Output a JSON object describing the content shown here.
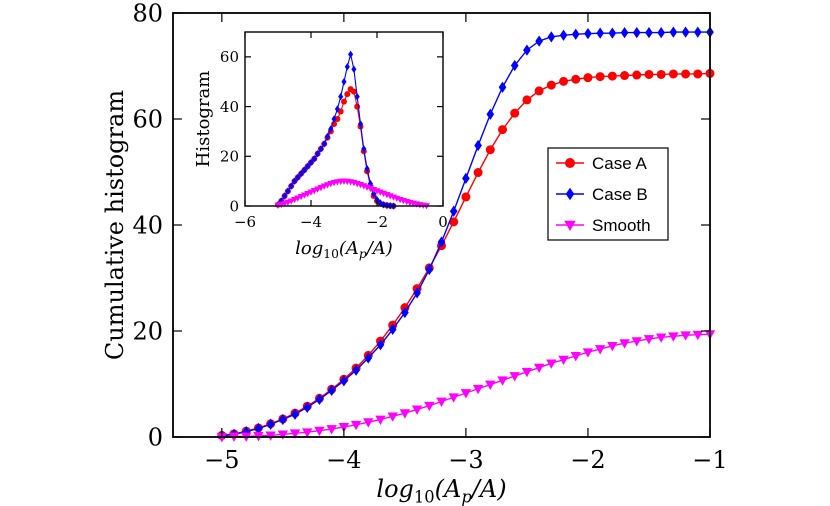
{
  "chart_data": [
    {
      "id": "main",
      "type": "line",
      "xlabel": "log10(Ap/A)",
      "ylabel": "Cumulative histogram",
      "xlim": [
        -5.4,
        -1
      ],
      "ylim": [
        0,
        80
      ],
      "xticks": [
        -5,
        -4,
        -3,
        -2,
        -1
      ],
      "xtick_labels": [
        "−5",
        "−4",
        "−3",
        "−2",
        "−1"
      ],
      "yticks": [
        0,
        20,
        40,
        60,
        80
      ],
      "ytick_labels": [
        "0",
        "20",
        "40",
        "60",
        "80"
      ],
      "legend_position": "right",
      "series": [
        {
          "name": "Case A",
          "color": "#ff0000",
          "marker": "circle",
          "x": [
            -5.0,
            -4.9,
            -4.8,
            -4.7,
            -4.6,
            -4.5,
            -4.4,
            -4.3,
            -4.2,
            -4.1,
            -4.0,
            -3.9,
            -3.8,
            -3.7,
            -3.6,
            -3.5,
            -3.4,
            -3.3,
            -3.2,
            -3.1,
            -3.0,
            -2.9,
            -2.8,
            -2.7,
            -2.6,
            -2.5,
            -2.4,
            -2.3,
            -2.2,
            -2.1,
            -2.0,
            -1.9,
            -1.8,
            -1.7,
            -1.6,
            -1.5,
            -1.4,
            -1.3,
            -1.2,
            -1.1,
            -1.0
          ],
          "y": [
            0.3,
            0.6,
            1.1,
            1.7,
            2.5,
            3.4,
            4.5,
            5.8,
            7.3,
            9.0,
            10.9,
            13.0,
            15.4,
            18.1,
            21.1,
            24.4,
            28.0,
            31.9,
            36.1,
            40.6,
            45.3,
            49.9,
            54.2,
            58.0,
            61.1,
            63.6,
            65.3,
            66.4,
            67.1,
            67.5,
            67.8,
            68.0,
            68.1,
            68.2,
            68.3,
            68.4,
            68.4,
            68.5,
            68.5,
            68.5,
            68.6
          ]
        },
        {
          "name": "Case B",
          "color": "#0000ff",
          "marker": "diamond",
          "x": [
            -5.0,
            -4.9,
            -4.8,
            -4.7,
            -4.6,
            -4.5,
            -4.4,
            -4.3,
            -4.2,
            -4.1,
            -4.0,
            -3.9,
            -3.8,
            -3.7,
            -3.6,
            -3.5,
            -3.4,
            -3.3,
            -3.2,
            -3.1,
            -3.0,
            -2.9,
            -2.8,
            -2.7,
            -2.6,
            -2.5,
            -2.4,
            -2.3,
            -2.2,
            -2.1,
            -2.0,
            -1.9,
            -1.8,
            -1.7,
            -1.6,
            -1.5,
            -1.4,
            -1.3,
            -1.2,
            -1.1,
            -1.0
          ],
          "y": [
            0.2,
            0.5,
            1.0,
            1.6,
            2.4,
            3.3,
            4.3,
            5.6,
            7.1,
            8.8,
            10.6,
            12.6,
            14.9,
            17.4,
            20.3,
            23.5,
            27.2,
            31.6,
            36.8,
            42.6,
            48.8,
            55.0,
            60.9,
            66.0,
            70.1,
            73.0,
            74.7,
            75.5,
            75.8,
            76.0,
            76.1,
            76.2,
            76.2,
            76.3,
            76.3,
            76.3,
            76.3,
            76.4,
            76.4,
            76.4,
            76.4
          ]
        },
        {
          "name": "Smooth",
          "color": "#ff00ff",
          "marker": "triangle-down",
          "x": [
            -5.0,
            -4.9,
            -4.8,
            -4.7,
            -4.6,
            -4.5,
            -4.4,
            -4.3,
            -4.2,
            -4.1,
            -4.0,
            -3.9,
            -3.8,
            -3.7,
            -3.6,
            -3.5,
            -3.4,
            -3.3,
            -3.2,
            -3.1,
            -3.0,
            -2.9,
            -2.8,
            -2.7,
            -2.6,
            -2.5,
            -2.4,
            -2.3,
            -2.2,
            -2.1,
            -2.0,
            -1.9,
            -1.8,
            -1.7,
            -1.6,
            -1.5,
            -1.4,
            -1.3,
            -1.2,
            -1.1,
            -1.0
          ],
          "y": [
            0.0,
            0.1,
            0.1,
            0.2,
            0.3,
            0.5,
            0.7,
            0.9,
            1.2,
            1.5,
            1.9,
            2.3,
            2.8,
            3.3,
            3.9,
            4.5,
            5.2,
            5.9,
            6.7,
            7.5,
            8.3,
            9.1,
            9.9,
            10.7,
            11.5,
            12.3,
            13.1,
            13.9,
            14.6,
            15.3,
            16.0,
            16.6,
            17.2,
            17.7,
            18.1,
            18.5,
            18.8,
            19.0,
            19.2,
            19.3,
            19.4
          ]
        }
      ]
    },
    {
      "id": "inset",
      "type": "line",
      "xlabel": "log10(Ap/A)",
      "ylabel": "Histogram",
      "xlim": [
        -6,
        0
      ],
      "ylim": [
        0,
        70
      ],
      "xticks": [
        -6,
        -4,
        -2,
        0
      ],
      "xtick_labels": [
        "−6",
        "−4",
        "−2",
        "0"
      ],
      "yticks": [
        0,
        20,
        40,
        60
      ],
      "ytick_labels": [
        "0",
        "20",
        "40",
        "60"
      ],
      "series": [
        {
          "name": "Case A",
          "color": "#ff0000",
          "marker": "circle",
          "x": [
            -5.0,
            -4.9,
            -4.8,
            -4.7,
            -4.6,
            -4.5,
            -4.4,
            -4.3,
            -4.2,
            -4.1,
            -4.0,
            -3.9,
            -3.8,
            -3.7,
            -3.6,
            -3.5,
            -3.4,
            -3.3,
            -3.2,
            -3.1,
            -3.0,
            -2.9,
            -2.8,
            -2.7,
            -2.6,
            -2.5,
            -2.4,
            -2.3,
            -2.2,
            -2.1,
            -2.0,
            -1.9,
            -1.8,
            -1.7,
            -1.6,
            -1.5
          ],
          "y": [
            0.5,
            2,
            4,
            6,
            8,
            10,
            11.5,
            13,
            14.5,
            16,
            17.5,
            19,
            21,
            23,
            25,
            27.5,
            30,
            33,
            35,
            38,
            42,
            45,
            47,
            46,
            40,
            32,
            22,
            14,
            8,
            4,
            2,
            1,
            0.5,
            0.3,
            0.1,
            0
          ]
        },
        {
          "name": "Case B",
          "color": "#0000ff",
          "marker": "diamond",
          "x": [
            -5.0,
            -4.9,
            -4.8,
            -4.7,
            -4.6,
            -4.5,
            -4.4,
            -4.3,
            -4.2,
            -4.1,
            -4.0,
            -3.9,
            -3.8,
            -3.7,
            -3.6,
            -3.5,
            -3.4,
            -3.3,
            -3.2,
            -3.1,
            -3.0,
            -2.9,
            -2.8,
            -2.7,
            -2.6,
            -2.5,
            -2.4,
            -2.3,
            -2.2,
            -2.1,
            -2.0,
            -1.9,
            -1.8,
            -1.7,
            -1.6,
            -1.5
          ],
          "y": [
            0.5,
            2,
            4,
            6,
            8,
            10,
            11.5,
            13,
            14.5,
            16,
            17.5,
            19,
            21,
            23,
            25,
            28,
            31,
            35,
            39,
            44,
            50,
            56,
            61,
            55,
            44,
            33,
            23,
            15,
            9,
            5,
            2.5,
            1.2,
            0.5,
            0.2,
            0.1,
            0
          ]
        },
        {
          "name": "Smooth",
          "color": "#ff00ff",
          "marker": "triangle-down",
          "x": [
            -5.0,
            -4.9,
            -4.8,
            -4.7,
            -4.6,
            -4.5,
            -4.4,
            -4.3,
            -4.2,
            -4.1,
            -4.0,
            -3.9,
            -3.8,
            -3.7,
            -3.6,
            -3.5,
            -3.4,
            -3.3,
            -3.2,
            -3.1,
            -3.0,
            -2.9,
            -2.8,
            -2.7,
            -2.6,
            -2.5,
            -2.4,
            -2.3,
            -2.2,
            -2.1,
            -2.0,
            -1.9,
            -1.8,
            -1.7,
            -1.6,
            -1.5,
            -1.4,
            -1.3,
            -1.2,
            -1.1,
            -1.0,
            -0.9,
            -0.8,
            -0.7,
            -0.6,
            -0.5
          ],
          "y": [
            0.3,
            0.6,
            1.0,
            1.5,
            2.0,
            2.6,
            3.2,
            3.8,
            4.4,
            5.0,
            5.6,
            6.2,
            6.8,
            7.4,
            8.0,
            8.5,
            9.0,
            9.4,
            9.7,
            9.9,
            10.0,
            9.9,
            9.7,
            9.4,
            9.0,
            8.6,
            8.1,
            7.6,
            7.1,
            6.6,
            6.1,
            5.6,
            5.1,
            4.6,
            4.1,
            3.6,
            3.1,
            2.6,
            2.2,
            1.8,
            1.4,
            1.1,
            0.8,
            0.5,
            0.3,
            0.1
          ]
        }
      ]
    }
  ]
}
